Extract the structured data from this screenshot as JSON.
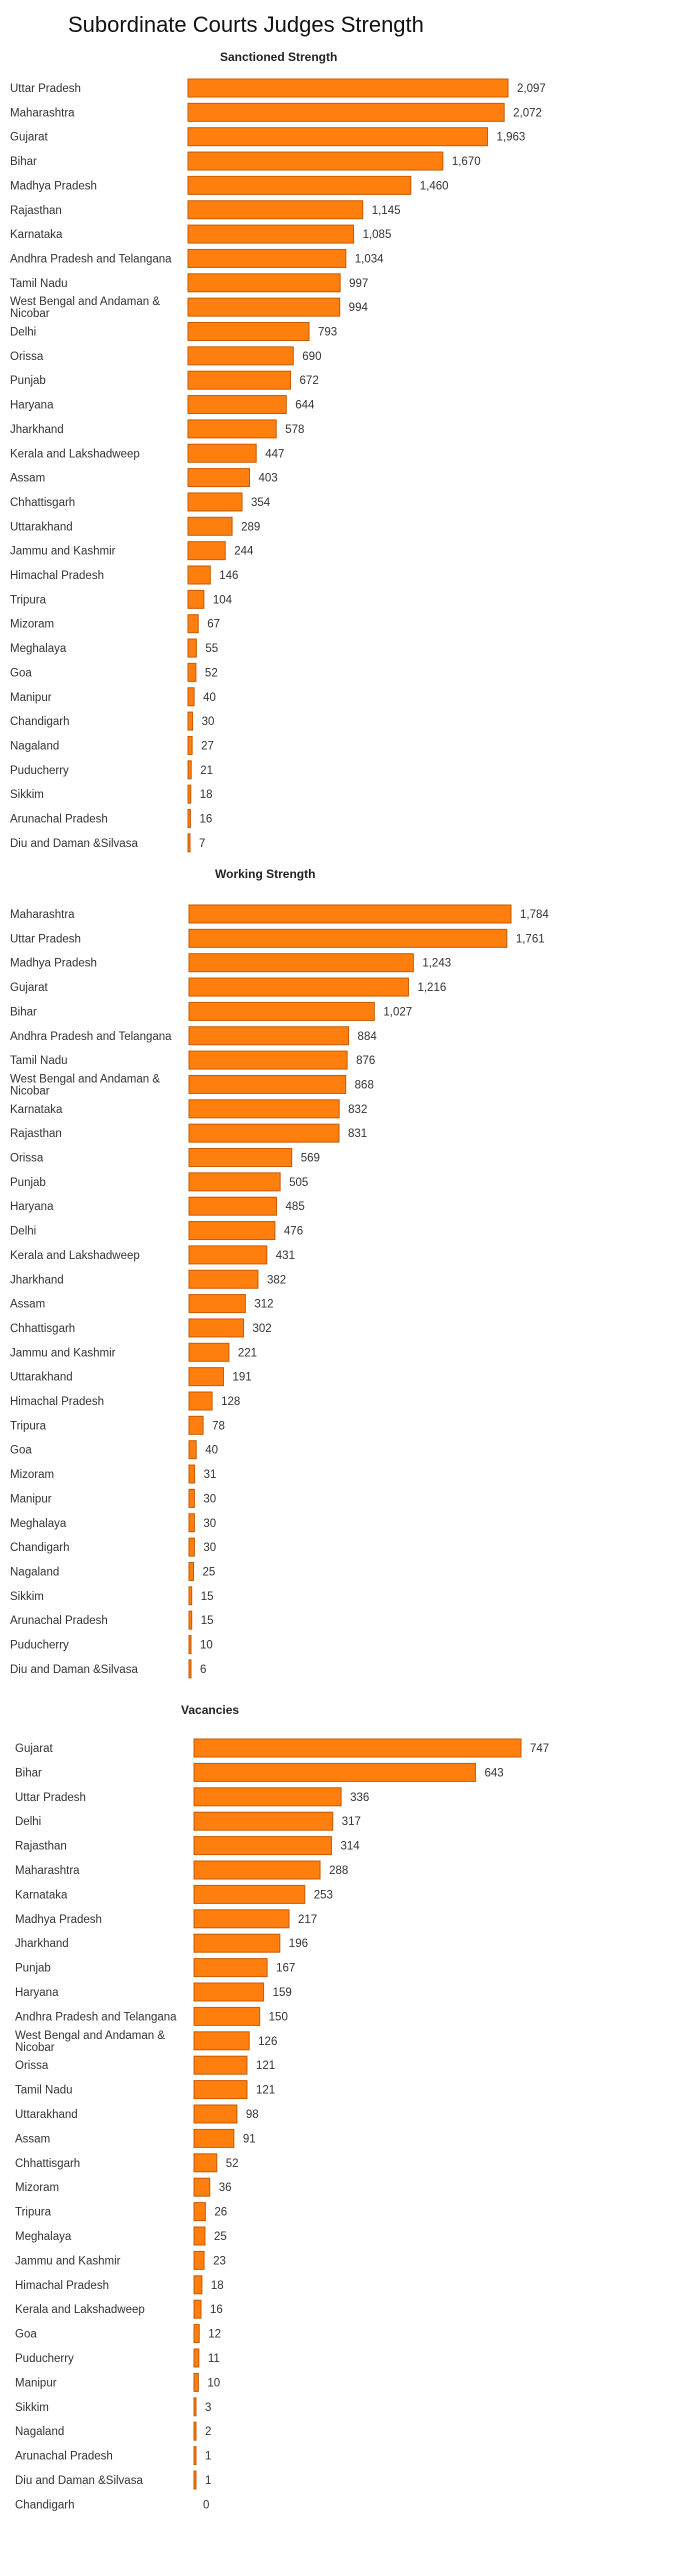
{
  "page_title": "Subordinate Courts Judges Strength",
  "chart_data": [
    {
      "type": "bar",
      "orientation": "horizontal",
      "title": "Sanctioned Strength",
      "xlabel": "",
      "ylabel": "",
      "xlim": [
        0,
        2097
      ],
      "categories": [
        "Uttar Pradesh",
        "Maharashtra",
        "Gujarat",
        "Bihar",
        "Madhya Pradesh",
        "Rajasthan",
        "Karnataka",
        "Andhra Pradesh and Telangana",
        "Tamil Nadu",
        "West Bengal and Andaman & Nicobar",
        "Delhi",
        "Orissa",
        "Punjab",
        "Haryana",
        "Jharkhand",
        "Kerala and Lakshadweep",
        "Assam",
        "Chhattisgarh",
        "Uttarakhand",
        "Jammu and Kashmir",
        "Himachal Pradesh",
        "Tripura",
        "Mizoram",
        "Meghalaya",
        "Goa",
        "Manipur",
        "Chandigarh",
        "Nagaland",
        "Puducherry",
        "Sikkim",
        "Arunachal Pradesh",
        "Diu and Daman &Silvasa"
      ],
      "values": [
        2097,
        2072,
        1963,
        1670,
        1460,
        1145,
        1085,
        1034,
        997,
        994,
        793,
        690,
        672,
        644,
        578,
        447,
        403,
        354,
        289,
        244,
        146,
        104,
        67,
        55,
        52,
        40,
        30,
        27,
        21,
        18,
        16,
        7
      ],
      "value_labels": [
        "2,097",
        "2,072",
        "1,963",
        "1,670",
        "1,460",
        "1,145",
        "1,085",
        "1,034",
        "997",
        "994",
        "793",
        "690",
        "672",
        "644",
        "578",
        "447",
        "403",
        "354",
        "289",
        "244",
        "146",
        "104",
        "67",
        "55",
        "52",
        "40",
        "30",
        "27",
        "21",
        "18",
        "16",
        "7"
      ],
      "bar_color": "#ff7f0e",
      "grid": false
    },
    {
      "type": "bar",
      "orientation": "horizontal",
      "title": "Working Strength",
      "xlabel": "",
      "ylabel": "",
      "xlim": [
        0,
        1784
      ],
      "categories": [
        "Maharashtra",
        "Uttar Pradesh",
        "Madhya Pradesh",
        "Gujarat",
        "Bihar",
        "Andhra Pradesh and Telangana",
        "Tamil Nadu",
        "West Bengal and Andaman & Nicobar",
        "Karnataka",
        "Rajasthan",
        "Orissa",
        "Punjab",
        "Haryana",
        "Delhi",
        "Kerala and Lakshadweep",
        "Jharkhand",
        "Assam",
        "Chhattisgarh",
        "Jammu and Kashmir",
        "Uttarakhand",
        "Himachal Pradesh",
        "Tripura",
        "Goa",
        "Mizoram",
        "Manipur",
        "Meghalaya",
        "Chandigarh",
        "Nagaland",
        "Sikkim",
        "Arunachal Pradesh",
        "Puducherry",
        "Diu and Daman &Silvasa"
      ],
      "values": [
        1784,
        1761,
        1243,
        1216,
        1027,
        884,
        876,
        868,
        832,
        831,
        569,
        505,
        485,
        476,
        431,
        382,
        312,
        302,
        221,
        191,
        128,
        78,
        40,
        31,
        30,
        30,
        30,
        25,
        15,
        15,
        10,
        6
      ],
      "value_labels": [
        "1,784",
        "1,761",
        "1,243",
        "1,216",
        "1,027",
        "884",
        "876",
        "868",
        "832",
        "831",
        "569",
        "505",
        "485",
        "476",
        "431",
        "382",
        "312",
        "302",
        "221",
        "191",
        "128",
        "78",
        "40",
        "31",
        "30",
        "30",
        "30",
        "25",
        "15",
        "15",
        "10",
        "6"
      ],
      "bar_color": "#ff7f0e",
      "grid": false
    },
    {
      "type": "bar",
      "orientation": "horizontal",
      "title": "Vacancies",
      "xlabel": "",
      "ylabel": "",
      "xlim": [
        0,
        747
      ],
      "categories": [
        "Gujarat",
        "Bihar",
        "Uttar Pradesh",
        "Delhi",
        "Rajasthan",
        "Maharashtra",
        "Karnataka",
        "Madhya Pradesh",
        "Jharkhand",
        "Punjab",
        "Haryana",
        "Andhra Pradesh and Telangana",
        "West Bengal and Andaman & Nicobar",
        "Orissa",
        "Tamil Nadu",
        "Uttarakhand",
        "Assam",
        "Chhattisgarh",
        "Mizoram",
        "Tripura",
        "Meghalaya",
        "Jammu and Kashmir",
        "Himachal Pradesh",
        "Kerala and Lakshadweep",
        "Goa",
        "Puducherry",
        "Manipur",
        "Sikkim",
        "Nagaland",
        "Arunachal Pradesh",
        "Diu and Daman &Silvasa",
        "Chandigarh"
      ],
      "values": [
        747,
        643,
        336,
        317,
        314,
        288,
        253,
        217,
        196,
        167,
        159,
        150,
        126,
        121,
        121,
        98,
        91,
        52,
        36,
        26,
        25,
        23,
        18,
        16,
        12,
        11,
        10,
        3,
        2,
        1,
        1,
        0
      ],
      "value_labels": [
        "747",
        "643",
        "336",
        "317",
        "314",
        "288",
        "253",
        "217",
        "196",
        "167",
        "159",
        "150",
        "126",
        "121",
        "121",
        "98",
        "91",
        "52",
        "36",
        "26",
        "25",
        "23",
        "18",
        "16",
        "12",
        "11",
        "10",
        "3",
        "2",
        "1",
        "1",
        "0"
      ],
      "bar_color": "#ff7f0e",
      "grid": false
    }
  ]
}
